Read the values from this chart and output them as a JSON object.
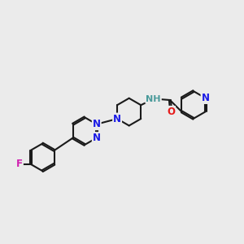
{
  "bg_color": "#ebebeb",
  "bond_color": "#1a1a1a",
  "bond_width": 1.5,
  "N_color": "#1a1ae6",
  "O_color": "#e61a1a",
  "F_color": "#d020b0",
  "NH_color": "#4a9a9a",
  "font_size": 8.5,
  "ring_r": 0.68,
  "xlim": [
    0,
    12
  ],
  "ylim": [
    0,
    10
  ]
}
